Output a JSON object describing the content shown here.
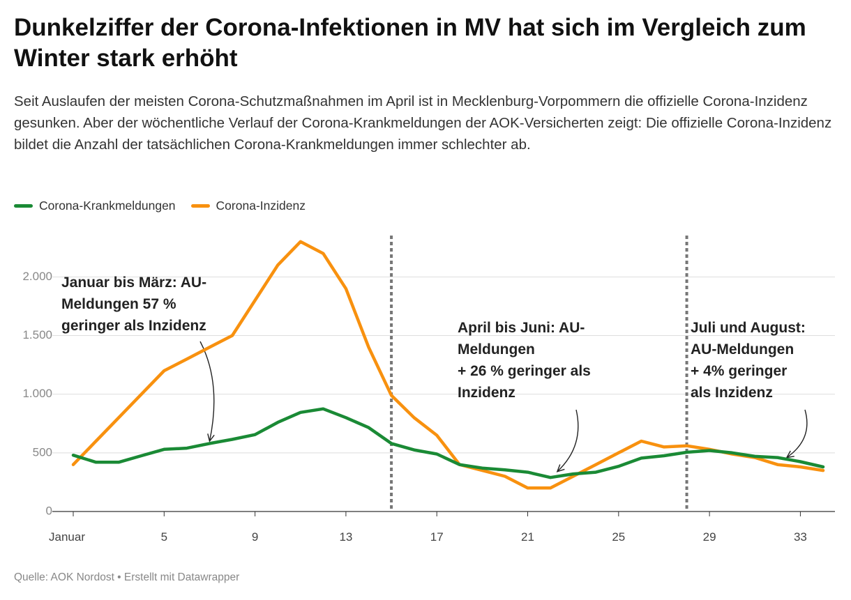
{
  "header": {
    "title": "Dunkelziffer der Corona-Infektionen in MV hat sich im Vergleich zum Winter stark erhöht",
    "subtitle": "Seit Auslaufen der meisten Corona-Schutzmaßnahmen im April ist in Mecklenburg-Vorpommern die offizielle Corona-Inzidenz gesunken. Aber der wöchentliche Verlauf der Corona-Krankmeldungen der AOK-Versicherten zeigt: Die offizielle Corona-Inzidenz bildet die Anzahl der tatsächlichen Corona-Krankmeldungen immer schlechter ab."
  },
  "footer": {
    "source": "Quelle: AOK Nordost • Erstellt mit Datawrapper"
  },
  "chart_data": {
    "type": "line",
    "xlim": [
      1,
      34
    ],
    "ylim": [
      0,
      2400
    ],
    "grid": true,
    "legend_position": "top-left",
    "x_ticks": [
      {
        "value": 1,
        "label": "Januar"
      },
      {
        "value": 5,
        "label": "5"
      },
      {
        "value": 9,
        "label": "9"
      },
      {
        "value": 13,
        "label": "13"
      },
      {
        "value": 17,
        "label": "17"
      },
      {
        "value": 21,
        "label": "21"
      },
      {
        "value": 25,
        "label": "25"
      },
      {
        "value": 29,
        "label": "29"
      },
      {
        "value": 33,
        "label": "33"
      }
    ],
    "y_ticks": [
      {
        "value": 0,
        "label": "0"
      },
      {
        "value": 500,
        "label": "500"
      },
      {
        "value": 1000,
        "label": "1.000"
      },
      {
        "value": 1500,
        "label": "1.500"
      },
      {
        "value": 2000,
        "label": "2.000"
      }
    ],
    "series": [
      {
        "name": "Corona-Krankmeldungen",
        "color": "#1a8a35",
        "x": [
          1,
          2,
          3,
          4,
          5,
          6,
          7,
          8,
          9,
          10,
          11,
          12,
          13,
          14,
          15,
          16,
          17,
          18,
          19,
          20,
          21,
          22,
          23,
          24,
          25,
          26,
          27,
          28,
          29,
          30,
          31,
          32,
          33,
          34
        ],
        "values": [
          480,
          420,
          420,
          475,
          530,
          540,
          580,
          615,
          655,
          760,
          845,
          875,
          800,
          715,
          580,
          525,
          490,
          400,
          370,
          355,
          335,
          290,
          320,
          335,
          385,
          455,
          475,
          505,
          520,
          500,
          470,
          460,
          425,
          380
        ]
      },
      {
        "name": "Corona-Inzidenz",
        "color": "#f8910f",
        "x": [
          1,
          2,
          3,
          4,
          5,
          6,
          7,
          8,
          9,
          10,
          11,
          12,
          13,
          14,
          15,
          16,
          17,
          18,
          19,
          20,
          21,
          22,
          23,
          24,
          25,
          26,
          27,
          28,
          29,
          30,
          31,
          32,
          33,
          34
        ],
        "values": [
          400,
          600,
          800,
          1000,
          1200,
          1300,
          1400,
          1500,
          1800,
          2100,
          2300,
          2200,
          1900,
          1400,
          990,
          800,
          650,
          400,
          350,
          300,
          200,
          200,
          300,
          400,
          500,
          600,
          550,
          560,
          530,
          490,
          460,
          400,
          380,
          350
        ]
      }
    ],
    "vertical_markers": [
      15,
      28
    ],
    "annotations": [
      {
        "lines": [
          "Januar bis März: AU-",
          "Meldungen 57 %",
          "geringer als Inzidenz"
        ],
        "arrow_target": {
          "x": 7,
          "y": 600
        }
      },
      {
        "lines": [
          "April bis Juni:  AU-",
          "Meldungen",
          "+ 26 % geringer als",
          "Inzidenz"
        ],
        "arrow_target": {
          "x": 22.3,
          "y": 340
        }
      },
      {
        "lines": [
          "Juli und August:",
          "AU-Meldungen",
          "+   4% geringer",
          " als Inzidenz"
        ],
        "arrow_target": {
          "x": 32.4,
          "y": 460
        }
      }
    ]
  }
}
